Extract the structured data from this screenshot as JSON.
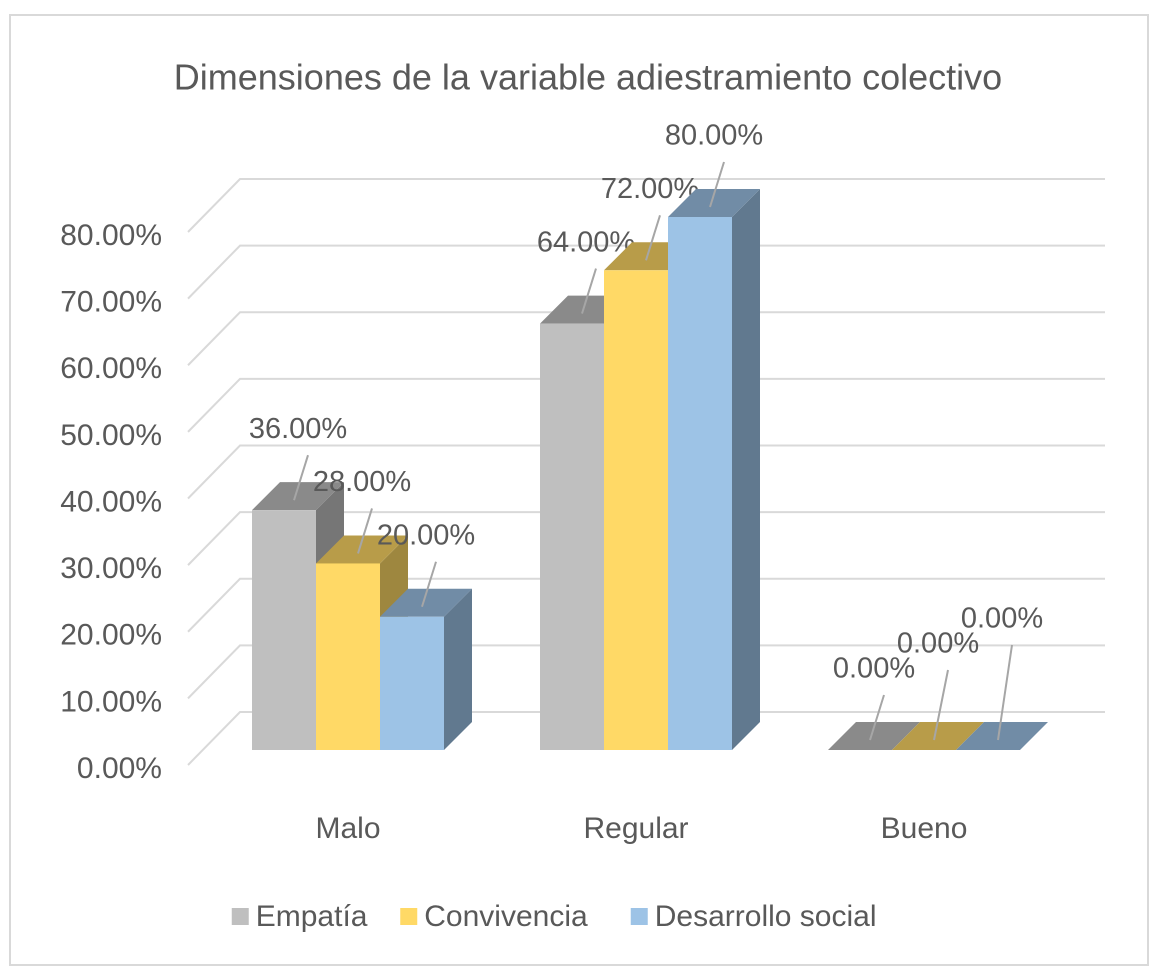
{
  "chart_data": {
    "type": "bar3d",
    "title": "Dimensiones de la variable adiestramiento colectivo",
    "categories": [
      "Malo",
      "Regular",
      "Bueno"
    ],
    "series": [
      {
        "name": "Empatía",
        "color": "#bfbfbf",
        "values": [
          36,
          64,
          0
        ],
        "value_labels": [
          "36.00%",
          "64.00%",
          "0.00%"
        ]
      },
      {
        "name": "Convivencia",
        "color": "#ffd966",
        "values": [
          28,
          72,
          0
        ],
        "value_labels": [
          "28.00%",
          "72.00%",
          "0.00%"
        ]
      },
      {
        "name": "Desarrollo social",
        "color": "#9dc3e6",
        "values": [
          20,
          80,
          0
        ],
        "value_labels": [
          "20.00%",
          "80.00%",
          "0.00%"
        ]
      }
    ],
    "ylim": [
      0,
      80
    ],
    "yticks": [
      {
        "value": 0,
        "label": "0.00%"
      },
      {
        "value": 10,
        "label": "10.00%"
      },
      {
        "value": 20,
        "label": "20.00%"
      },
      {
        "value": 30,
        "label": "30.00%"
      },
      {
        "value": 40,
        "label": "40.00%"
      },
      {
        "value": 50,
        "label": "50.00%"
      },
      {
        "value": 60,
        "label": "60.00%"
      },
      {
        "value": 70,
        "label": "70.00%"
      },
      {
        "value": 80,
        "label": "80.00%"
      }
    ],
    "grid": true,
    "legend": "bottom"
  }
}
